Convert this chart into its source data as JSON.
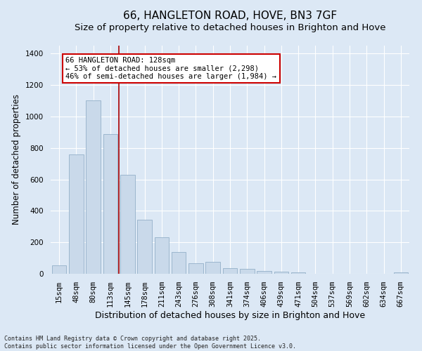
{
  "title_line1": "66, HANGLETON ROAD, HOVE, BN3 7GF",
  "title_line2": "Size of property relative to detached houses in Brighton and Hove",
  "xlabel": "Distribution of detached houses by size in Brighton and Hove",
  "ylabel": "Number of detached properties",
  "categories": [
    "15sqm",
    "48sqm",
    "80sqm",
    "113sqm",
    "145sqm",
    "178sqm",
    "211sqm",
    "243sqm",
    "276sqm",
    "308sqm",
    "341sqm",
    "374sqm",
    "406sqm",
    "439sqm",
    "471sqm",
    "504sqm",
    "537sqm",
    "569sqm",
    "602sqm",
    "634sqm",
    "667sqm"
  ],
  "values": [
    55,
    760,
    1100,
    890,
    630,
    345,
    230,
    140,
    65,
    75,
    35,
    30,
    20,
    12,
    8,
    2,
    0,
    1,
    0,
    0,
    8
  ],
  "bar_color": "#c9d9ea",
  "bar_edgecolor": "#93afc8",
  "vline_x_index": 3.5,
  "vline_color": "#aa0000",
  "annotation_text": "66 HANGLETON ROAD: 128sqm\n← 53% of detached houses are smaller (2,298)\n46% of semi-detached houses are larger (1,984) →",
  "annotation_box_facecolor": "#ffffff",
  "annotation_box_edgecolor": "#cc0000",
  "ylim": [
    0,
    1450
  ],
  "yticks": [
    0,
    200,
    400,
    600,
    800,
    1000,
    1200,
    1400
  ],
  "background_color": "#dce8f5",
  "grid_color": "#ffffff",
  "footer_text": "Contains HM Land Registry data © Crown copyright and database right 2025.\nContains public sector information licensed under the Open Government Licence v3.0.",
  "title_fontsize": 11,
  "subtitle_fontsize": 9.5,
  "ylabel_fontsize": 8.5,
  "xlabel_fontsize": 9,
  "tick_fontsize": 7.5,
  "annotation_fontsize": 7.5,
  "footer_fontsize": 6
}
